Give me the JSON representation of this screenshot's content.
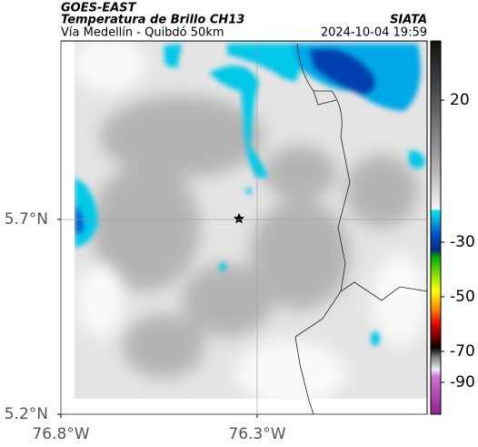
{
  "header": {
    "source": "GOES-EAST",
    "title": "Temperatura de Brillo CH13",
    "subtitle": "Vía Medellín - Quibdó 50km",
    "org": "SIATA",
    "datetime": "2024-10-04 19:59"
  },
  "map": {
    "xlim": [
      -76.8,
      -75.867
    ],
    "ylim": [
      5.2,
      6.158
    ],
    "xticks": [
      {
        "value": -76.8,
        "label": "76.8°W"
      },
      {
        "value": -76.3,
        "label": "76.3°W"
      }
    ],
    "yticks": [
      {
        "value": 5.7,
        "label": "5.7°N"
      },
      {
        "value": 5.2,
        "label": "5.2°N"
      }
    ]
  },
  "colorbar": {
    "ticks": [
      20,
      -30,
      -50,
      -70,
      -90
    ]
  }
}
